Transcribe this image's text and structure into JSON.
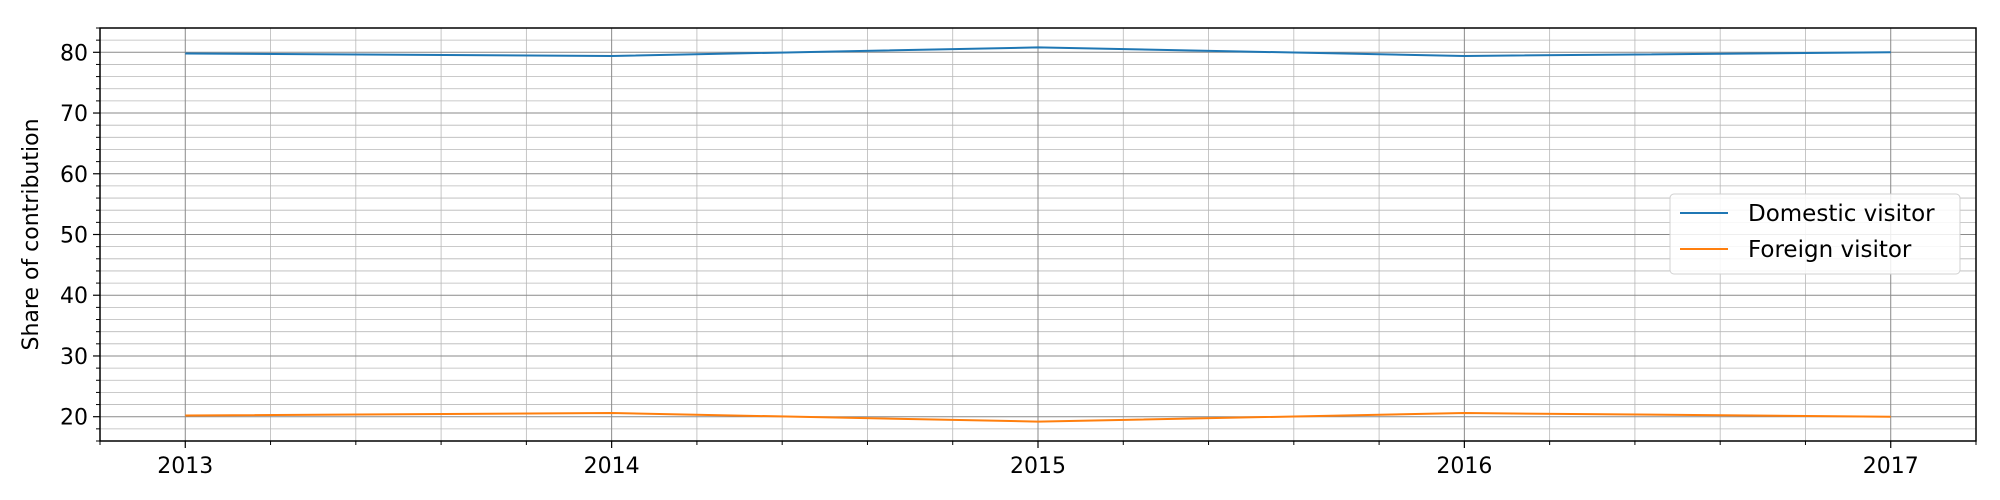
{
  "chart_data": {
    "type": "line",
    "title": "",
    "xlabel": "",
    "ylabel": "Share of contribution",
    "x": [
      2013,
      2014,
      2015,
      2016,
      2017
    ],
    "x_tick_labels": [
      "2013",
      "2014",
      "2015",
      "2016",
      "2017"
    ],
    "xlim": [
      2012.8,
      2017.2
    ],
    "ylim": [
      16,
      84
    ],
    "y_ticks": [
      20,
      30,
      40,
      50,
      60,
      70,
      80
    ],
    "y_tick_labels": [
      "20",
      "30",
      "40",
      "50",
      "60",
      "70",
      "80"
    ],
    "grid": true,
    "minor_grid": true,
    "legend_position": "right",
    "series": [
      {
        "name": "Domestic visitor",
        "color": "#1f77b4",
        "values": [
          79.8,
          79.4,
          80.8,
          79.4,
          80.0
        ]
      },
      {
        "name": "Foreign visitor",
        "color": "#ff7f0e",
        "values": [
          20.2,
          20.6,
          19.2,
          20.6,
          20.0
        ]
      }
    ]
  }
}
